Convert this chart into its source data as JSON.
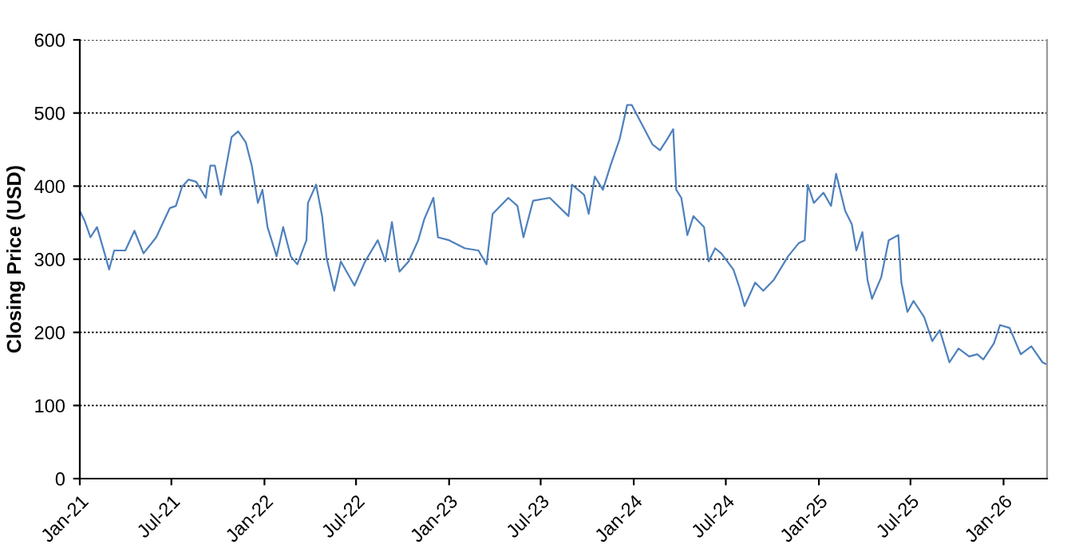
{
  "chart_data": {
    "type": "line",
    "ylabel": "Closing Price (USD)",
    "x": [
      "2021-01-01",
      "2021-01-11",
      "2021-01-22",
      "2021-02-04",
      "2021-02-19",
      "2021-02-28",
      "2021-03-10",
      "2021-04-01",
      "2021-04-19",
      "2021-05-07",
      "2021-06-01",
      "2021-06-28",
      "2021-07-10",
      "2021-07-22",
      "2021-08-04",
      "2021-08-19",
      "2021-09-07",
      "2021-09-16",
      "2021-09-25",
      "2021-10-07",
      "2021-10-28",
      "2021-11-10",
      "2021-11-25",
      "2021-12-07",
      "2021-12-19",
      "2021-12-28",
      "2022-01-07",
      "2022-01-25",
      "2022-02-07",
      "2022-02-22",
      "2022-03-07",
      "2022-03-25",
      "2022-03-28",
      "2022-04-13",
      "2022-04-25",
      "2022-05-04",
      "2022-05-19",
      "2022-06-01",
      "2022-06-28",
      "2022-07-19",
      "2022-08-13",
      "2022-08-28",
      "2022-09-10",
      "2022-09-22",
      "2022-09-25",
      "2022-10-13",
      "2022-11-01",
      "2022-11-13",
      "2022-12-01",
      "2022-12-10",
      "2023-01-01",
      "2023-02-01",
      "2023-02-28",
      "2023-03-16",
      "2023-03-28",
      "2023-04-28",
      "2023-05-16",
      "2023-05-28",
      "2023-06-16",
      "2023-07-19",
      "2023-08-25",
      "2023-09-01",
      "2023-09-25",
      "2023-10-04",
      "2023-10-16",
      "2023-11-01",
      "2023-11-16",
      "2023-12-04",
      "2023-12-19",
      "2023-12-28",
      "2024-01-16",
      "2024-02-07",
      "2024-02-22",
      "2024-03-07",
      "2024-03-19",
      "2024-03-25",
      "2024-04-04",
      "2024-04-16",
      "2024-04-28",
      "2024-05-19",
      "2024-05-28",
      "2024-06-10",
      "2024-06-22",
      "2024-07-16",
      "2024-07-28",
      "2024-08-07",
      "2024-08-28",
      "2024-09-13",
      "2024-10-04",
      "2024-11-01",
      "2024-11-22",
      "2024-12-04",
      "2024-12-10",
      "2024-12-22",
      "2025-01-10",
      "2025-01-25",
      "2025-02-04",
      "2025-02-22",
      "2025-03-07",
      "2025-03-16",
      "2025-03-28",
      "2025-04-07",
      "2025-04-16",
      "2025-05-04",
      "2025-05-19",
      "2025-06-07",
      "2025-06-13",
      "2025-06-25",
      "2025-07-07",
      "2025-07-28",
      "2025-08-13",
      "2025-08-28",
      "2025-09-16",
      "2025-10-04",
      "2025-10-25",
      "2025-11-10",
      "2025-11-22",
      "2025-12-13",
      "2025-12-25",
      "2026-01-13",
      "2026-02-04",
      "2026-02-25",
      "2026-03-19",
      "2026-03-28"
    ],
    "series": [
      {
        "color": "#4f81bd",
        "values": [
          366,
          352,
          330,
          344,
          308,
          286,
          312,
          312,
          339,
          308,
          330,
          370,
          373,
          399,
          409,
          406,
          384,
          428,
          428,
          388,
          467,
          475,
          460,
          428,
          377,
          395,
          344,
          304,
          344,
          304,
          293,
          326,
          377,
          402,
          359,
          301,
          257,
          297,
          264,
          297,
          326,
          297,
          351,
          293,
          283,
          297,
          326,
          355,
          384,
          330,
          326,
          315,
          312,
          293,
          362,
          384,
          373,
          330,
          380,
          384,
          359,
          402,
          388,
          362,
          413,
          395,
          428,
          464,
          511,
          511,
          486,
          457,
          449,
          464,
          478,
          395,
          384,
          333,
          359,
          344,
          297,
          315,
          308,
          286,
          261,
          236,
          268,
          257,
          272,
          304,
          322,
          326,
          402,
          377,
          391,
          373,
          417,
          366,
          348,
          312,
          337,
          272,
          246,
          275,
          326,
          333,
          268,
          228,
          243,
          221,
          188,
          203,
          159,
          178,
          167,
          170,
          163,
          185,
          210,
          206,
          170,
          181,
          159,
          156
        ]
      }
    ],
    "xlim": [
      "2021-01-01",
      "2026-03-28"
    ],
    "xticks": [
      {
        "value": "2021-01-01",
        "label": "Jan-21"
      },
      {
        "value": "2021-07-01",
        "label": "Jul-21"
      },
      {
        "value": "2022-01-01",
        "label": "Jan-22"
      },
      {
        "value": "2022-07-01",
        "label": "Jul-22"
      },
      {
        "value": "2023-01-01",
        "label": "Jan-23"
      },
      {
        "value": "2023-07-01",
        "label": "Jul-23"
      },
      {
        "value": "2024-01-01",
        "label": "Jan-24"
      },
      {
        "value": "2024-07-01",
        "label": "Jul-24"
      },
      {
        "value": "2025-01-01",
        "label": "Jan-25"
      },
      {
        "value": "2025-07-01",
        "label": "Jul-25"
      },
      {
        "value": "2026-01-01",
        "label": "Jan-26"
      }
    ],
    "ylim": [
      0,
      600
    ],
    "yticks": [
      0,
      100,
      200,
      300,
      400,
      500,
      600
    ],
    "grid": "y",
    "line_style": "solid"
  }
}
